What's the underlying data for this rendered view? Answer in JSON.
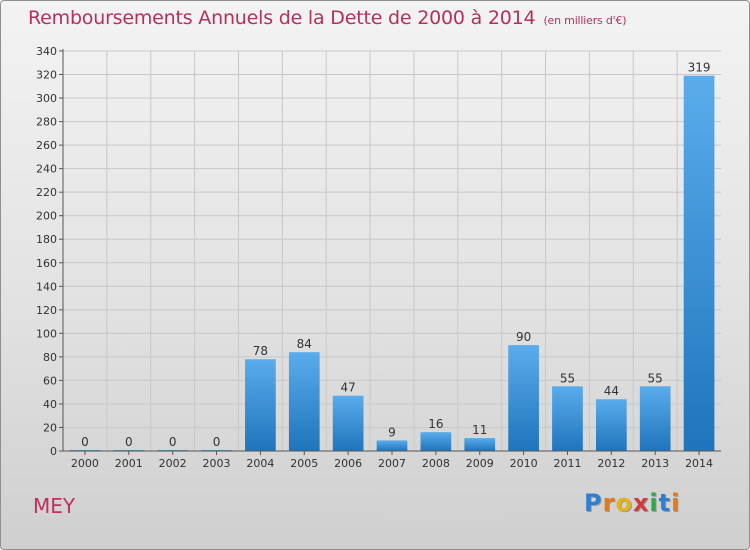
{
  "header": {
    "title": "Remboursements Annuels de la Dette de 2000 à 2014",
    "unit": "(en milliers d'€)"
  },
  "footer": {
    "place": "MEY",
    "logo": "Proxiti"
  },
  "colors": {
    "title": "#b5305e",
    "bar_light": "#5aacec",
    "bar_dark": "#1f74bb",
    "grid": "#c8c8c8"
  },
  "chart_data": {
    "type": "bar",
    "title": "Remboursements Annuels de la Dette de 2000 à 2014",
    "subtitle": "(en milliers d'€)",
    "xlabel": "",
    "ylabel": "",
    "categories": [
      "2000",
      "2001",
      "2002",
      "2003",
      "2004",
      "2005",
      "2006",
      "2007",
      "2008",
      "2009",
      "2010",
      "2011",
      "2012",
      "2013",
      "2014"
    ],
    "values": [
      0,
      0,
      0,
      0,
      78,
      84,
      47,
      9,
      16,
      11,
      90,
      55,
      44,
      55,
      319
    ],
    "ylim": [
      0,
      340
    ],
    "yticks": [
      0,
      20,
      40,
      60,
      80,
      100,
      120,
      140,
      160,
      180,
      200,
      220,
      240,
      260,
      280,
      300,
      320,
      340
    ],
    "grid": true,
    "legend": "none"
  }
}
